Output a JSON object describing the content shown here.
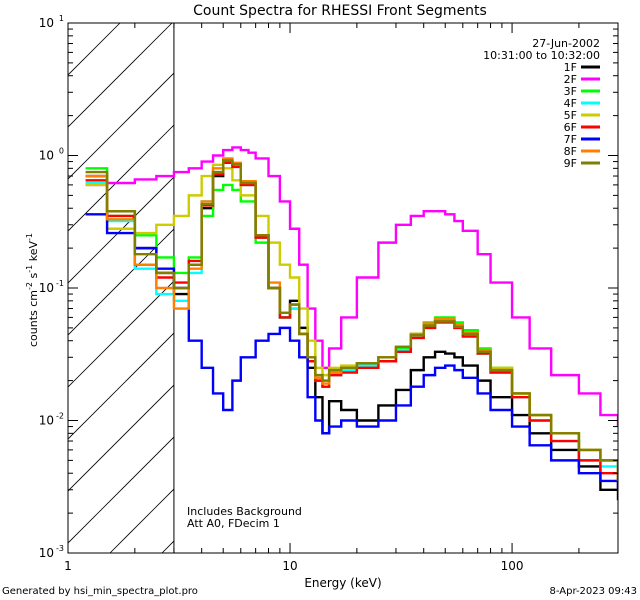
{
  "chart_data": {
    "type": "line",
    "title": "Count Spectra for RHESSI Front Segments",
    "xlabel": "Energy (keV)",
    "ylabel_prefix": "counts cm",
    "ylabel_unit_s": " s",
    "ylabel_unit_kev": " keV",
    "ylabel_exp": "-2",
    "ylabel_exp_s": "-1",
    "ylabel_exp_kev": "-1",
    "xscale": "log",
    "yscale": "log",
    "xlim": [
      1,
      300
    ],
    "ylim": [
      0.001,
      10
    ],
    "x_ticks": [
      {
        "value": 1,
        "label": "1"
      },
      {
        "value": 10,
        "label": "10"
      },
      {
        "value": 100,
        "label": "100"
      }
    ],
    "y_ticks": [
      {
        "value": 0.001,
        "base": "10",
        "exp": "-3"
      },
      {
        "value": 0.01,
        "base": "10",
        "exp": "-2"
      },
      {
        "value": 0.1,
        "base": "10",
        "exp": "-1"
      },
      {
        "value": 1,
        "base": "10",
        "exp": "0"
      },
      {
        "value": 10,
        "base": "10",
        "exp": "1"
      }
    ],
    "hatched_region": [
      1,
      3
    ],
    "date": "27-Jun-2002",
    "time_range": "10:31:00 to 10:32:00",
    "annotations": [
      "Includes Background",
      "Att A0, FDecim 1"
    ],
    "footer_left": "Generated by hsi_min_spectra_plot.pro",
    "footer_right": "8-Apr-2023 09:43",
    "legend_location": "top-right",
    "series": [
      {
        "name": "1F",
        "color": "#000000",
        "x": [
          1.2,
          1.5,
          2,
          2.5,
          3,
          3.5,
          4,
          4.5,
          5,
          5.5,
          6,
          7,
          8,
          9,
          10,
          11,
          12,
          13,
          14,
          15,
          17,
          20,
          25,
          30,
          35,
          40,
          45,
          50,
          55,
          60,
          70,
          80,
          100,
          120,
          150,
          200,
          250,
          300
        ],
        "y": [
          0.7,
          0.38,
          0.2,
          0.13,
          0.09,
          0.15,
          0.4,
          0.7,
          0.9,
          0.85,
          0.6,
          0.25,
          0.1,
          0.06,
          0.08,
          0.05,
          0.025,
          0.015,
          0.008,
          0.014,
          0.012,
          0.01,
          0.013,
          0.017,
          0.024,
          0.03,
          0.033,
          0.032,
          0.03,
          0.026,
          0.02,
          0.015,
          0.011,
          0.008,
          0.006,
          0.0045,
          0.003,
          0.0025
        ]
      },
      {
        "name": "2F",
        "color": "#ff00ff",
        "x": [
          1.2,
          1.5,
          2,
          2.5,
          3,
          3.5,
          4,
          4.5,
          5,
          5.5,
          6,
          6.5,
          7,
          8,
          9,
          10,
          11,
          12,
          13,
          14,
          15,
          17,
          20,
          25,
          30,
          35,
          40,
          45,
          50,
          55,
          60,
          70,
          80,
          100,
          120,
          150,
          200,
          250,
          300
        ],
        "y": [
          0.6,
          0.62,
          0.66,
          0.7,
          0.75,
          0.8,
          0.9,
          1.0,
          1.1,
          1.15,
          1.1,
          1.05,
          0.95,
          0.7,
          0.45,
          0.28,
          0.15,
          0.07,
          0.04,
          0.025,
          0.035,
          0.06,
          0.12,
          0.22,
          0.3,
          0.35,
          0.38,
          0.38,
          0.36,
          0.32,
          0.27,
          0.18,
          0.11,
          0.06,
          0.035,
          0.022,
          0.016,
          0.011,
          0.009
        ]
      },
      {
        "name": "3F",
        "color": "#00ff00",
        "x": [
          1.2,
          1.5,
          2,
          2.5,
          3,
          3.5,
          4,
          4.5,
          5,
          5.5,
          6,
          7,
          8,
          9,
          10,
          11,
          12,
          13,
          14,
          15,
          17,
          20,
          25,
          30,
          35,
          40,
          45,
          50,
          55,
          60,
          70,
          80,
          100,
          120,
          150,
          200,
          250,
          300
        ],
        "y": [
          0.8,
          0.35,
          0.25,
          0.17,
          0.13,
          0.17,
          0.35,
          0.55,
          0.6,
          0.55,
          0.45,
          0.22,
          0.1,
          0.06,
          0.07,
          0.045,
          0.03,
          0.02,
          0.018,
          0.022,
          0.024,
          0.026,
          0.028,
          0.035,
          0.045,
          0.055,
          0.06,
          0.06,
          0.055,
          0.048,
          0.035,
          0.025,
          0.016,
          0.011,
          0.008,
          0.006,
          0.005,
          0.003
        ]
      },
      {
        "name": "4F",
        "color": "#00ffff",
        "x": [
          1.2,
          1.5,
          2,
          2.5,
          3,
          3.5,
          4,
          4.5,
          5,
          5.5,
          6,
          7,
          8,
          9,
          10,
          11,
          12,
          13,
          14,
          15,
          17,
          20,
          25,
          30,
          35,
          40,
          45,
          50,
          55,
          60,
          70,
          80,
          100,
          120,
          150,
          200,
          250,
          300
        ],
        "y": [
          0.62,
          0.32,
          0.14,
          0.09,
          0.08,
          0.13,
          0.45,
          0.75,
          0.9,
          0.85,
          0.62,
          0.24,
          0.1,
          0.06,
          0.07,
          0.045,
          0.028,
          0.02,
          0.018,
          0.022,
          0.024,
          0.026,
          0.028,
          0.034,
          0.042,
          0.05,
          0.055,
          0.055,
          0.05,
          0.044,
          0.032,
          0.023,
          0.015,
          0.01,
          0.007,
          0.005,
          0.0045,
          0.003
        ]
      },
      {
        "name": "5F",
        "color": "#cccc00",
        "x": [
          1.2,
          1.5,
          2,
          2.5,
          3,
          3.5,
          4,
          4.5,
          5,
          5.5,
          6,
          7,
          8,
          9,
          10,
          11,
          12,
          13,
          14,
          15,
          17,
          20,
          25,
          30,
          35,
          40,
          45,
          50,
          55,
          60,
          70,
          80,
          100,
          120,
          150,
          200,
          250,
          300
        ],
        "y": [
          0.6,
          0.28,
          0.26,
          0.3,
          0.35,
          0.5,
          0.7,
          0.85,
          0.8,
          0.65,
          0.5,
          0.35,
          0.22,
          0.15,
          0.12,
          0.07,
          0.04,
          0.025,
          0.022,
          0.025,
          0.026,
          0.027,
          0.03,
          0.036,
          0.045,
          0.053,
          0.058,
          0.058,
          0.053,
          0.046,
          0.034,
          0.025,
          0.016,
          0.011,
          0.008,
          0.006,
          0.005,
          0.0035
        ]
      },
      {
        "name": "6F",
        "color": "#ff0000",
        "x": [
          1.2,
          1.5,
          2,
          2.5,
          3,
          3.5,
          4,
          4.5,
          5,
          5.5,
          6,
          7,
          8,
          9,
          10,
          11,
          12,
          13,
          14,
          15,
          17,
          20,
          25,
          30,
          35,
          40,
          45,
          50,
          55,
          60,
          70,
          80,
          100,
          120,
          150,
          200,
          250,
          300
        ],
        "y": [
          0.65,
          0.35,
          0.15,
          0.12,
          0.11,
          0.16,
          0.42,
          0.72,
          0.88,
          0.82,
          0.6,
          0.24,
          0.1,
          0.06,
          0.075,
          0.045,
          0.028,
          0.02,
          0.018,
          0.022,
          0.023,
          0.025,
          0.028,
          0.033,
          0.042,
          0.05,
          0.055,
          0.055,
          0.05,
          0.043,
          0.032,
          0.023,
          0.015,
          0.01,
          0.007,
          0.005,
          0.004,
          0.003
        ]
      },
      {
        "name": "7F",
        "color": "#0000ff",
        "x": [
          1.2,
          1.5,
          2,
          2.5,
          3,
          3.5,
          4,
          4.5,
          5,
          5.5,
          6,
          7,
          8,
          9,
          10,
          11,
          12,
          13,
          14,
          15,
          17,
          20,
          25,
          30,
          35,
          40,
          45,
          50,
          55,
          60,
          70,
          80,
          100,
          120,
          150,
          200,
          250,
          300
        ],
        "y": [
          0.36,
          0.26,
          0.2,
          0.14,
          0.1,
          0.04,
          0.025,
          0.016,
          0.012,
          0.02,
          0.03,
          0.04,
          0.045,
          0.05,
          0.04,
          0.03,
          0.015,
          0.01,
          0.008,
          0.009,
          0.01,
          0.009,
          0.01,
          0.013,
          0.018,
          0.022,
          0.025,
          0.026,
          0.024,
          0.021,
          0.016,
          0.012,
          0.009,
          0.0065,
          0.005,
          0.004,
          0.0035,
          0.003
        ]
      },
      {
        "name": "8F",
        "color": "#ff8000",
        "x": [
          1.2,
          1.5,
          2,
          2.5,
          3,
          3.5,
          4,
          4.5,
          5,
          5.5,
          6,
          7,
          8,
          9,
          10,
          11,
          12,
          13,
          14,
          15,
          17,
          20,
          25,
          30,
          35,
          40,
          45,
          50,
          55,
          60,
          70,
          80,
          100,
          120,
          150,
          200,
          250,
          300
        ],
        "y": [
          0.7,
          0.33,
          0.15,
          0.1,
          0.07,
          0.14,
          0.45,
          0.8,
          0.95,
          0.88,
          0.64,
          0.25,
          0.11,
          0.065,
          0.075,
          0.045,
          0.03,
          0.021,
          0.019,
          0.023,
          0.025,
          0.027,
          0.03,
          0.036,
          0.045,
          0.054,
          0.058,
          0.058,
          0.053,
          0.046,
          0.034,
          0.024,
          0.016,
          0.011,
          0.008,
          0.006,
          0.005,
          0.0035
        ]
      },
      {
        "name": "9F",
        "color": "#808000",
        "x": [
          1.2,
          1.5,
          2,
          2.5,
          3,
          3.5,
          4,
          4.5,
          5,
          5.5,
          6,
          7,
          8,
          9,
          10,
          11,
          12,
          13,
          14,
          15,
          17,
          20,
          25,
          30,
          35,
          40,
          45,
          50,
          55,
          60,
          70,
          80,
          100,
          120,
          150,
          200,
          250,
          300
        ],
        "y": [
          0.75,
          0.38,
          0.18,
          0.13,
          0.1,
          0.15,
          0.43,
          0.75,
          0.92,
          0.86,
          0.62,
          0.25,
          0.1,
          0.065,
          0.075,
          0.045,
          0.03,
          0.022,
          0.02,
          0.024,
          0.025,
          0.027,
          0.03,
          0.036,
          0.044,
          0.052,
          0.056,
          0.056,
          0.051,
          0.045,
          0.033,
          0.024,
          0.016,
          0.011,
          0.008,
          0.006,
          0.005,
          0.0035
        ]
      }
    ]
  }
}
